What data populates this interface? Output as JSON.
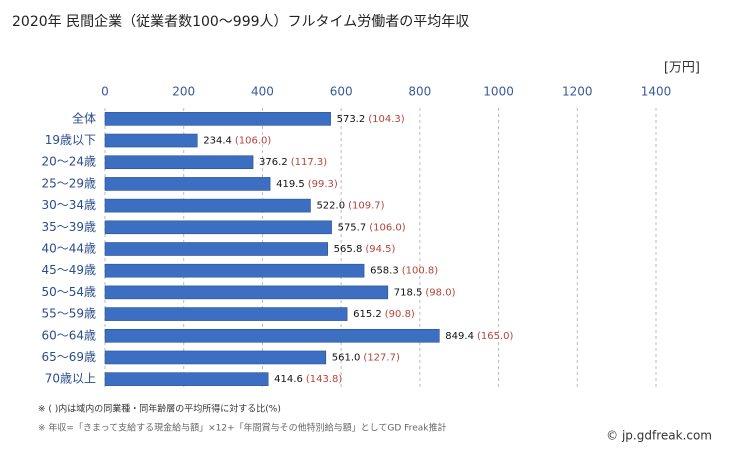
{
  "chart_data": {
    "type": "bar",
    "orientation": "horizontal",
    "title": "2020年 民間企業（従業者数100～999人）フルタイム労働者の平均年収",
    "unit": "[万円]",
    "categories": [
      "全体",
      "19歳以下",
      "20～24歳",
      "25～29歳",
      "30～34歳",
      "35～39歳",
      "40～44歳",
      "45～49歳",
      "50～54歳",
      "55～59歳",
      "60～64歳",
      "65～69歳",
      "70歳以上"
    ],
    "values": [
      573.2,
      234.4,
      376.2,
      419.5,
      522.0,
      575.7,
      565.8,
      658.3,
      718.5,
      615.2,
      849.4,
      561.0,
      414.6
    ],
    "value_labels": [
      "573.2",
      "234.4",
      "376.2",
      "419.5",
      "522.0",
      "575.7",
      "565.8",
      "658.3",
      "718.5",
      "615.2",
      "849.4",
      "561.0",
      "414.6"
    ],
    "ratio_values": [
      104.3,
      106.0,
      117.3,
      99.3,
      109.7,
      106.0,
      94.5,
      100.8,
      98.0,
      90.8,
      165.0,
      127.7,
      143.8
    ],
    "ratio_labels": [
      "(104.3)",
      "(106.0)",
      "(117.3)",
      "(99.3)",
      "(109.7)",
      "(106.0)",
      "(94.5)",
      "(100.8)",
      "(98.0)",
      "(90.8)",
      "(165.0)",
      "(127.7)",
      "(143.8)"
    ],
    "color": "#3c6fc2",
    "ratio_color": "#b5443a",
    "xlim": [
      0,
      1400
    ],
    "xticks": [
      0,
      200,
      400,
      600,
      800,
      1000,
      1200,
      1400
    ],
    "grid": true,
    "notes": [
      "※ ( )内は域内の同業種・同年齢層の平均所得に対する比(%)",
      "※ 年収=「きまって支給する現金給与額」×12+「年間賞与その他特別給与額」としてGD Freak推計"
    ],
    "credit": "© jp.gdfreak.com"
  }
}
